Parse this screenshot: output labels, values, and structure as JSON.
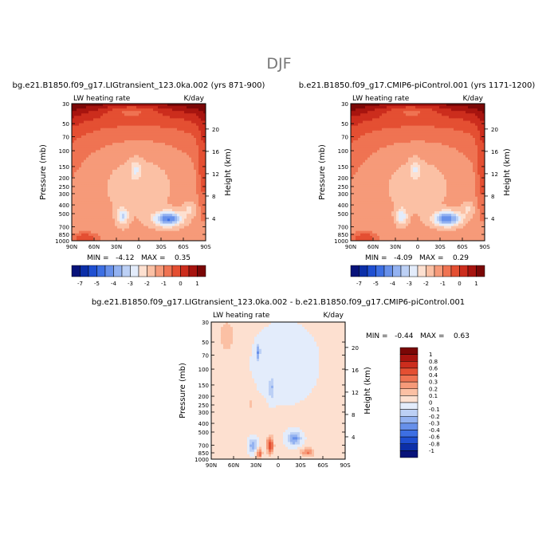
{
  "figure": {
    "title": "DJF"
  },
  "chart_data": [
    {
      "type": "heatmap",
      "title": "bg.e21.B1850.f09_g17.LIGtransient_123.0ka.002 (yrs 871-900)",
      "left_label": "LW heating rate",
      "right_label": "K/day",
      "ylabel": "Pressure (mb)",
      "y2label": "Height (km)",
      "x_ticks": [
        "90N",
        "60N",
        "30N",
        "0",
        "30S",
        "60S",
        "90S"
      ],
      "y_ticks": [
        30,
        50,
        70,
        100,
        150,
        200,
        250,
        300,
        400,
        500,
        700,
        850,
        1000
      ],
      "y2_ticks": [
        20,
        16,
        12,
        8,
        4
      ],
      "ylim": [
        30,
        1000
      ],
      "yscale": "log",
      "stats": "MIN =   -4.12   MAX =    0.35",
      "colorbar": {
        "levels": [
          "-7",
          "-5",
          "-4",
          "-3",
          "-2",
          "-1",
          "0",
          "1"
        ],
        "colors": [
          "#08137a",
          "#0c2fa8",
          "#1f4fd1",
          "#3d6fe3",
          "#6790ea",
          "#93b2f1",
          "#bcd0f5",
          "#e3ecfb",
          "#fde0d0",
          "#fbc0a4",
          "#f69a79",
          "#ef7352",
          "#e44f32",
          "#cc2d1d",
          "#a7140f",
          "#7a0706"
        ]
      }
    },
    {
      "type": "heatmap",
      "title": "b.e21.B1850.f09_g17.CMIP6-piControl.001 (yrs 1171-1200)",
      "left_label": "LW heating rate",
      "right_label": "K/day",
      "ylabel": "Pressure (mb)",
      "y2label": "Height (km)",
      "x_ticks": [
        "90N",
        "60N",
        "30N",
        "0",
        "30S",
        "60S",
        "90S"
      ],
      "y_ticks": [
        30,
        50,
        70,
        100,
        150,
        200,
        250,
        300,
        400,
        500,
        700,
        850,
        1000
      ],
      "y2_ticks": [
        20,
        16,
        12,
        8,
        4
      ],
      "ylim": [
        30,
        1000
      ],
      "yscale": "log",
      "stats": "MIN =   -4.09   MAX =    0.29",
      "colorbar": {
        "levels": [
          "-7",
          "-5",
          "-4",
          "-3",
          "-2",
          "-1",
          "0",
          "1"
        ],
        "colors": [
          "#08137a",
          "#0c2fa8",
          "#1f4fd1",
          "#3d6fe3",
          "#6790ea",
          "#93b2f1",
          "#bcd0f5",
          "#e3ecfb",
          "#fde0d0",
          "#fbc0a4",
          "#f69a79",
          "#ef7352",
          "#e44f32",
          "#cc2d1d",
          "#a7140f",
          "#7a0706"
        ]
      }
    },
    {
      "type": "heatmap",
      "title": "bg.e21.B1850.f09_g17.LIGtransient_123.0ka.002 - b.e21.B1850.f09_g17.CMIP6-piControl.001",
      "left_label": "LW heating rate",
      "right_label": "K/day",
      "ylabel": "Pressure (mb)",
      "y2label": "Height (km)",
      "x_ticks": [
        "90N",
        "60N",
        "30N",
        "0",
        "30S",
        "60S",
        "90S"
      ],
      "y_ticks": [
        30,
        50,
        70,
        100,
        150,
        200,
        250,
        300,
        400,
        500,
        700,
        850,
        1000
      ],
      "y2_ticks": [
        20,
        16,
        12,
        8,
        4
      ],
      "ylim": [
        30,
        1000
      ],
      "yscale": "log",
      "stats": "MIN =   -0.44   MAX =    0.63",
      "colorbar": {
        "orientation": "vertical",
        "levels": [
          "1",
          "0.8",
          "0.6",
          "0.4",
          "0.3",
          "0.2",
          "0.1",
          "0",
          "-0.1",
          "-0.2",
          "-0.3",
          "-0.4",
          "-0.6",
          "-0.8",
          "-1"
        ],
        "colors": [
          "#7a0706",
          "#a7140f",
          "#cc2d1d",
          "#e44f32",
          "#ef7352",
          "#f69a79",
          "#fbc0a4",
          "#fde0d0",
          "#e3ecfb",
          "#bcd0f5",
          "#93b2f1",
          "#6790ea",
          "#3d6fe3",
          "#1f4fd1",
          "#0c2fa8",
          "#08137a"
        ]
      }
    }
  ]
}
